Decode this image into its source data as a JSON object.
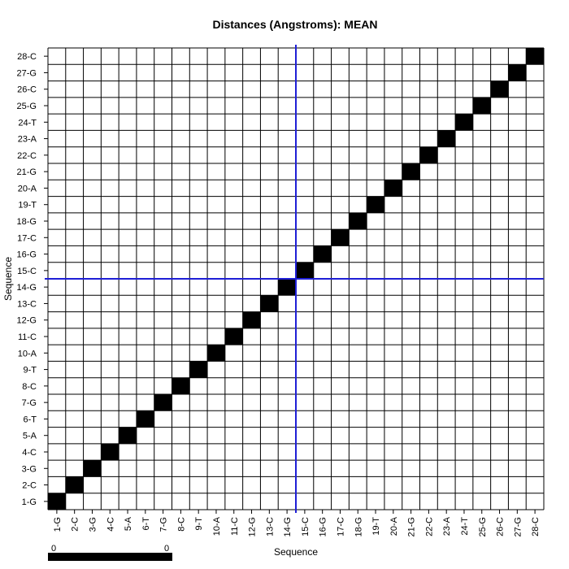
{
  "chart_data": {
    "type": "heatmap",
    "title": "Distances (Angstroms):  MEAN",
    "xlabel": "Sequence",
    "ylabel": "Sequence",
    "x_categories": [
      "1-G",
      "2-C",
      "3-G",
      "4-C",
      "5-A",
      "6-T",
      "7-G",
      "8-C",
      "9-T",
      "10-A",
      "11-C",
      "12-G",
      "13-C",
      "14-G",
      "15-C",
      "16-G",
      "17-C",
      "18-G",
      "19-T",
      "20-A",
      "21-G",
      "22-C",
      "23-A",
      "24-T",
      "25-G",
      "26-C",
      "27-G",
      "28-C"
    ],
    "y_categories": [
      "1-G",
      "2-C",
      "3-G",
      "4-C",
      "5-A",
      "6-T",
      "7-G",
      "8-C",
      "9-T",
      "10-A",
      "11-C",
      "12-G",
      "13-C",
      "14-G",
      "15-C",
      "16-G",
      "17-C",
      "18-G",
      "19-T",
      "20-A",
      "21-G",
      "22-C",
      "23-A",
      "24-T",
      "25-G",
      "26-C",
      "27-G",
      "28-C"
    ],
    "filled_cells": "diagonal",
    "colors": {
      "filled": "#000000",
      "empty": "#ffffff",
      "grid": "#000000",
      "divider": "#1f1fd6"
    },
    "divider_after_index": 14,
    "colorbar": {
      "min_label": "0",
      "max_label": "0"
    }
  }
}
